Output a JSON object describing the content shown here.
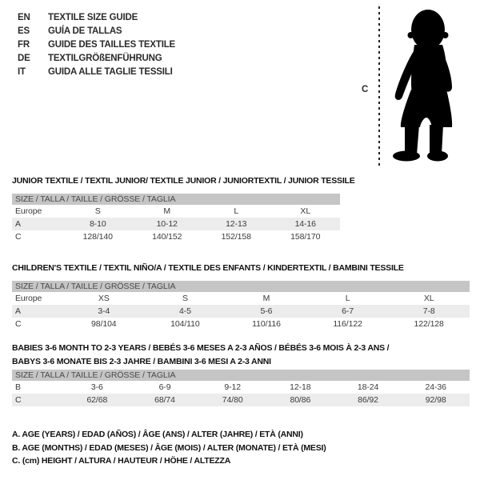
{
  "languages": [
    {
      "code": "EN",
      "title": "TEXTILE SIZE GUIDE"
    },
    {
      "code": "ES",
      "title": "GUÍA DE TALLAS"
    },
    {
      "code": "FR",
      "title": "GUIDE DES TAILLES TEXTILE"
    },
    {
      "code": "DE",
      "title": "TEXTILGRÖßENFÜHRUNG"
    },
    {
      "code": "IT",
      "title": "GUIDA ALLE TAGLIE TESSILI"
    }
  ],
  "figure": {
    "icon": "baby-silhouette-icon",
    "measure_label": "C"
  },
  "sections": [
    {
      "title_lines": [
        "JUNIOR TEXTILE / TEXTIL JUNIOR/ TEXTILE JUNIOR / JUNIORTEXTIL / JUNIOR TESSILE"
      ],
      "size_header": "SIZE / TALLA / TAILLE / GRÖSSE / TAGLIA",
      "rows": [
        {
          "label": "Europe",
          "values": [
            "S",
            "M",
            "L",
            "XL"
          ]
        },
        {
          "label": "A",
          "values": [
            "8-10",
            "10-12",
            "12-13",
            "14-16"
          ]
        },
        {
          "label": "C",
          "values": [
            "128/140",
            "140/152",
            "152/158",
            "158/170"
          ]
        }
      ]
    },
    {
      "title_lines": [
        "CHILDREN'S TEXTILE / TEXTIL NIÑO/A / TEXTILE DES ENFANTS / KINDERTEXTIL / BAMBINI TESSILE"
      ],
      "size_header": "SIZE / TALLA / TAILLE / GRÖSSE / TAGLIA",
      "rows": [
        {
          "label": "Europe",
          "values": [
            "XS",
            "S",
            "M",
            "L",
            "XL"
          ]
        },
        {
          "label": "A",
          "values": [
            "3-4",
            "4-5",
            "5-6",
            "6-7",
            "7-8"
          ]
        },
        {
          "label": "C",
          "values": [
            "98/104",
            "104/110",
            "110/116",
            "116/122",
            "122/128"
          ]
        }
      ]
    },
    {
      "title_lines": [
        "BABIES 3-6 MONTH TO 2-3 YEARS / BEBÉS 3-6 MESES A 2-3 AÑOS / BÉBÉS 3-6 MOIS À 2-3 ANS /",
        "BABYS 3-6 MONATE BIS 2-3 JAHRE / BAMBINI 3-6 MESI A 2-3 ANNI"
      ],
      "size_header": "SIZE / TALLA / TAILLE / GRÖSSE / TAGLIA",
      "rows": [
        {
          "label": "B",
          "values": [
            "3-6",
            "6-9",
            "9-12",
            "12-18",
            "18-24",
            "24-36"
          ]
        },
        {
          "label": "C",
          "values": [
            "62/68",
            "68/74",
            "74/80",
            "80/86",
            "86/92",
            "92/98"
          ]
        }
      ]
    }
  ],
  "legend": [
    "A. AGE (YEARS) / EDAD (AÑOS) / ÂGE (ANS) / ALTER (JAHRE) / ETÀ (ANNI)",
    "B. AGE (MONTHS) / EDAD (MESES) / ÂGE (MOIS) / ALTER (MONATE) / ETÀ (MESI)",
    "C. (cm) HEIGHT / ALTURA / HAUTEUR / HÖHE / ALTEZZA"
  ],
  "colors": {
    "header_bar_bg": "#c5c5c5",
    "stripe_bg": "#ececec",
    "text": "#2b2b2b",
    "muted_text": "#4a4a4a"
  }
}
